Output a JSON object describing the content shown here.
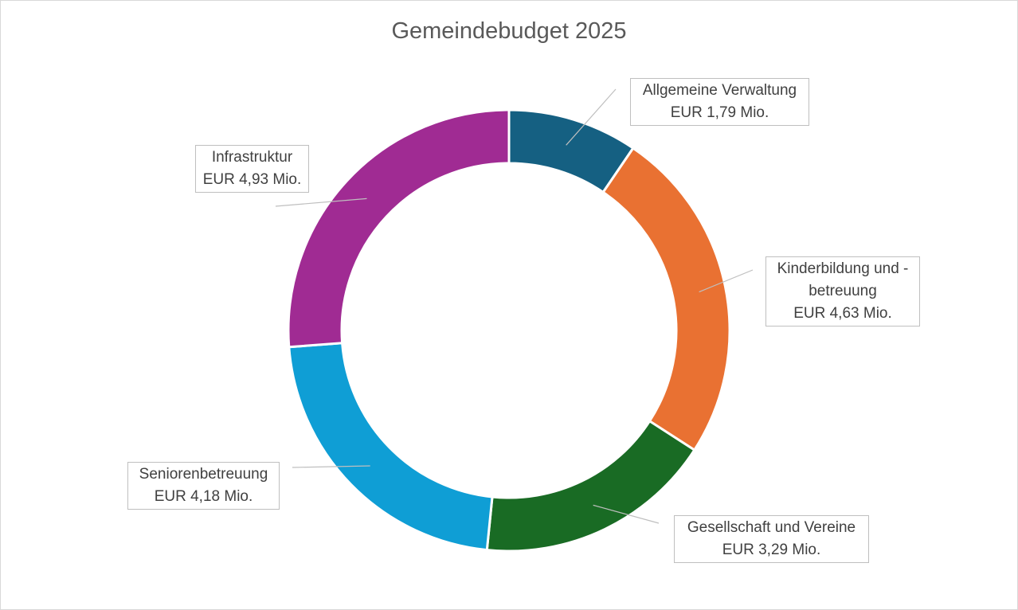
{
  "chart_data": {
    "type": "pie",
    "variant": "doughnut",
    "title": "Gemeindebudget 2025",
    "unit": "EUR Mio.",
    "slices": [
      {
        "id": "verwaltung",
        "name": "Allgemeine Verwaltung",
        "value": 1.79,
        "value_label": "EUR 1,79 Mio.",
        "color": "#156082"
      },
      {
        "id": "kinder",
        "name": "Kinderbildung und -betreuung",
        "name_lines": [
          "Kinderbildung und -",
          "betreuung"
        ],
        "value": 4.63,
        "value_label": "EUR 4,63 Mio.",
        "color": "#E97132"
      },
      {
        "id": "gesellschaft",
        "name": "Gesellschaft und Vereine",
        "value": 3.29,
        "value_label": "EUR 3,29 Mio.",
        "color": "#196B24"
      },
      {
        "id": "senioren",
        "name": "Seniorenbetreuung",
        "value": 4.18,
        "value_label": "EUR 4,18 Mio.",
        "color": "#0F9ED5"
      },
      {
        "id": "infrastruktur",
        "name": "Infrastruktur",
        "value": 4.93,
        "value_label": "EUR 4,93 Mio.",
        "color": "#A02B93"
      }
    ],
    "start_angle_deg": 0,
    "direction": "clockwise",
    "legend": "none",
    "data_labels": "outside with leader lines"
  }
}
